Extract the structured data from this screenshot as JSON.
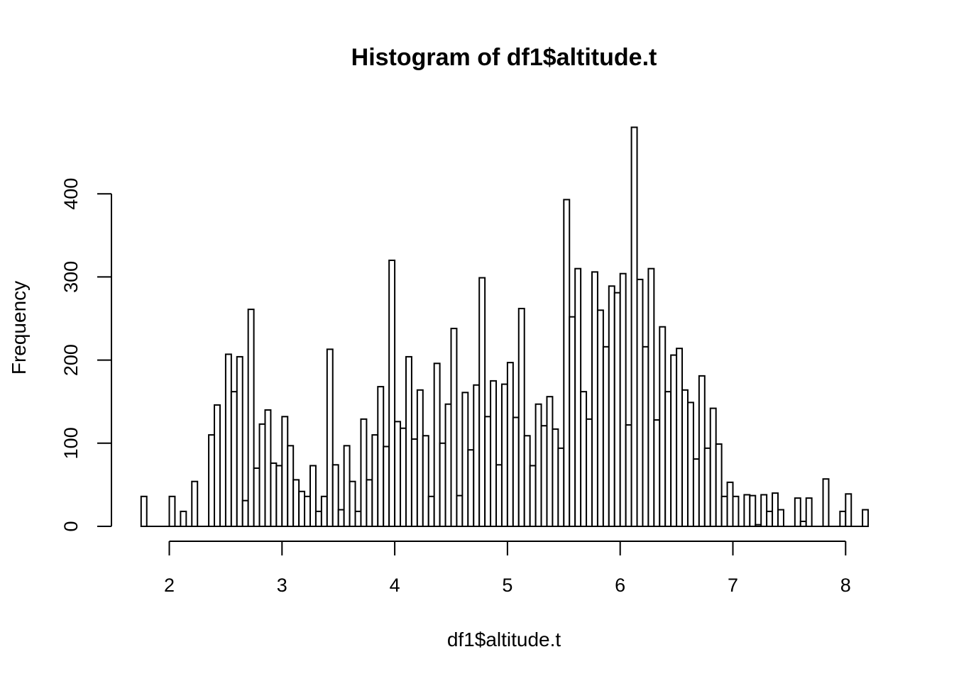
{
  "chart_data": {
    "type": "bar",
    "title": "Histogram of df1$altitude.t",
    "xlabel": "df1$altitude.t",
    "ylabel": "Frequency",
    "xlim": [
      1.75,
      8.2
    ],
    "ylim": [
      0,
      480
    ],
    "bin_width": 0.05,
    "bin_start": 1.75,
    "x_ticks": [
      2,
      3,
      4,
      5,
      6,
      7,
      8
    ],
    "y_ticks": [
      0,
      100,
      200,
      300,
      400
    ],
    "bar_fill": "#ffffff",
    "bar_stroke": "#000000",
    "grid": false,
    "values": [
      36,
      0,
      0,
      0,
      0,
      36,
      0,
      18,
      0,
      54,
      0,
      0,
      110,
      146,
      0,
      207,
      162,
      204,
      31,
      261,
      70,
      123,
      140,
      76,
      73,
      132,
      97,
      56,
      42,
      36,
      73,
      18,
      36,
      213,
      74,
      20,
      97,
      54,
      18,
      129,
      56,
      110,
      168,
      96,
      320,
      126,
      118,
      204,
      105,
      164,
      109,
      36,
      196,
      100,
      147,
      238,
      37,
      161,
      92,
      170,
      299,
      132,
      175,
      74,
      171,
      197,
      131,
      262,
      109,
      73,
      147,
      121,
      156,
      117,
      94,
      393,
      252,
      310,
      162,
      129,
      306,
      260,
      216,
      289,
      281,
      304,
      122,
      480,
      297,
      216,
      310,
      128,
      240,
      162,
      206,
      214,
      164,
      149,
      81,
      181,
      94,
      142,
      99,
      36,
      53,
      36,
      0,
      38,
      37,
      2,
      38,
      18,
      40,
      20,
      0,
      0,
      34,
      6,
      34,
      0,
      0,
      57,
      0,
      0,
      18,
      39,
      0,
      0,
      20
    ]
  }
}
